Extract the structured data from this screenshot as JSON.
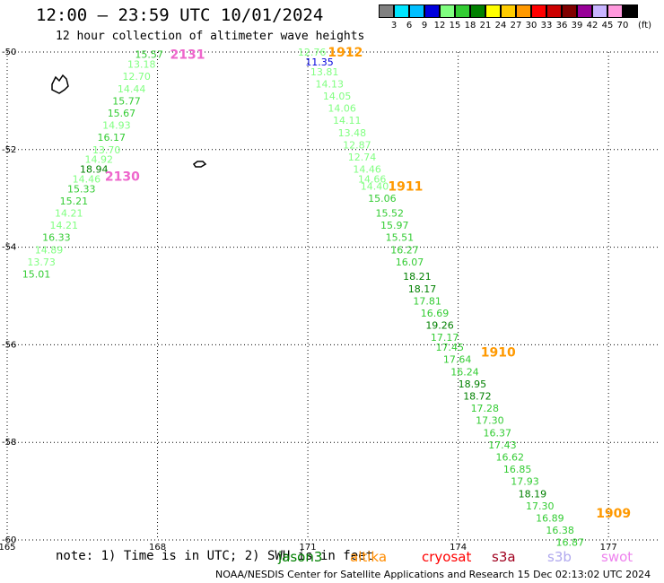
{
  "title": "12:00 – 23:59 UTC 10/01/2024",
  "subtitle": "12 hour collection of altimeter wave heights",
  "note": "note: 1) Time is in UTC; 2) SWH is in feet",
  "credit": "NOAA/NESDIS Center for Satellite Applications and Research   15 Dec 02:13:02 UTC 2024",
  "satellites": [
    {
      "name": "jason3",
      "color": "#008000"
    },
    {
      "name": "altika",
      "color": "#ff8c00"
    },
    {
      "name": "cryosat",
      "color": "#ff0000"
    },
    {
      "name": "s3a",
      "color": "#a0001e"
    },
    {
      "name": "s3b",
      "color": "#b0a8ee"
    },
    {
      "name": "swot",
      "color": "#ee82ee"
    }
  ],
  "legend": {
    "unit": "(ft)",
    "ticks": [
      "3",
      "6",
      "9",
      "12",
      "15",
      "18",
      "21",
      "24",
      "27",
      "30",
      "33",
      "36",
      "39",
      "42",
      "45",
      "70"
    ],
    "colors": [
      "#808080",
      "#00e5ff",
      "#00bfff",
      "#0000dd",
      "#80ff80",
      "#33cc33",
      "#008000",
      "#ffff00",
      "#ffcc00",
      "#ff9900",
      "#ff0000",
      "#cc0000",
      "#800000",
      "#990099",
      "#c8b4ff",
      "#ff99dd",
      "#000000"
    ]
  },
  "map": {
    "lon_range": [
      165,
      178
    ],
    "lat_range": [
      -60,
      -50
    ],
    "lon_ticks": [
      165,
      168,
      171,
      174,
      177
    ],
    "lat_ticks": [
      -50,
      -52,
      -54,
      -56,
      -58,
      -60
    ],
    "grid": "dotted"
  },
  "time_labels": [
    {
      "text": "1912",
      "lon": 171.4,
      "lat": -50.0,
      "color": "#ff9900"
    },
    {
      "text": "2131",
      "lon": 168.25,
      "lat": -50.05,
      "color": "#ee66cc"
    },
    {
      "text": "2130",
      "lon": 166.95,
      "lat": -52.55,
      "color": "#ee66cc"
    },
    {
      "text": "1911",
      "lon": 172.6,
      "lat": -52.75,
      "color": "#ff9900"
    },
    {
      "text": "1910",
      "lon": 174.45,
      "lat": -56.15,
      "color": "#ff9900"
    },
    {
      "text": "1909",
      "lon": 176.75,
      "lat": -59.45,
      "color": "#ff9900"
    }
  ],
  "tracks": [
    {
      "points": [
        {
          "lon": 167.55,
          "lat": -50.05,
          "swh": "15.57"
        },
        {
          "lon": 167.4,
          "lat": -50.25,
          "swh": "13.18"
        },
        {
          "lon": 167.3,
          "lat": -50.5,
          "swh": "12.70"
        },
        {
          "lon": 167.2,
          "lat": -50.75,
          "swh": "14.44"
        },
        {
          "lon": 167.1,
          "lat": -51.0,
          "swh": "15.77"
        },
        {
          "lon": 167.0,
          "lat": -51.25,
          "swh": "15.67"
        },
        {
          "lon": 166.9,
          "lat": -51.5,
          "swh": "14.93"
        },
        {
          "lon": 166.8,
          "lat": -51.75,
          "swh": "16.17"
        },
        {
          "lon": 166.7,
          "lat": -52.0,
          "swh": "13.70"
        },
        {
          "lon": 166.55,
          "lat": -52.2,
          "swh": "14.92"
        },
        {
          "lon": 166.45,
          "lat": -52.4,
          "swh": "18.94"
        },
        {
          "lon": 166.3,
          "lat": -52.6,
          "swh": "14.46"
        },
        {
          "lon": 166.2,
          "lat": -52.8,
          "swh": "15.33"
        },
        {
          "lon": 166.05,
          "lat": -53.05,
          "swh": "15.21"
        },
        {
          "lon": 165.95,
          "lat": -53.3,
          "swh": "14.21"
        },
        {
          "lon": 165.85,
          "lat": -53.55,
          "swh": "14.21"
        },
        {
          "lon": 165.7,
          "lat": -53.8,
          "swh": "16.33"
        },
        {
          "lon": 165.55,
          "lat": -54.05,
          "swh": "14.89"
        },
        {
          "lon": 165.4,
          "lat": -54.3,
          "swh": "13.73"
        },
        {
          "lon": 165.3,
          "lat": -54.55,
          "swh": "15.01"
        }
      ]
    },
    {
      "points": [
        {
          "lon": 170.8,
          "lat": -50.0,
          "swh": "12.76"
        },
        {
          "lon": 170.95,
          "lat": -50.2,
          "swh": "11.35"
        },
        {
          "lon": 171.05,
          "lat": -50.4,
          "swh": "13.81"
        },
        {
          "lon": 171.15,
          "lat": -50.65,
          "swh": "14.13"
        },
        {
          "lon": 171.3,
          "lat": -50.9,
          "swh": "14.05"
        },
        {
          "lon": 171.4,
          "lat": -51.15,
          "swh": "14.06"
        },
        {
          "lon": 171.5,
          "lat": -51.4,
          "swh": "14.11"
        },
        {
          "lon": 171.6,
          "lat": -51.65,
          "swh": "13.48"
        },
        {
          "lon": 171.7,
          "lat": -51.9,
          "swh": "12.87"
        },
        {
          "lon": 171.8,
          "lat": -52.15,
          "swh": "12.74"
        },
        {
          "lon": 171.9,
          "lat": -52.4,
          "swh": "14.46"
        },
        {
          "lon": 172.0,
          "lat": -52.6,
          "swh": "14.66"
        },
        {
          "lon": 172.05,
          "lat": -52.75,
          "swh": "14.40"
        },
        {
          "lon": 172.2,
          "lat": -53.0,
          "swh": "15.06"
        },
        {
          "lon": 172.35,
          "lat": -53.3,
          "swh": "15.52"
        },
        {
          "lon": 172.45,
          "lat": -53.55,
          "swh": "15.97"
        },
        {
          "lon": 172.55,
          "lat": -53.8,
          "swh": "15.51"
        },
        {
          "lon": 172.65,
          "lat": -54.05,
          "swh": "16.27"
        },
        {
          "lon": 172.75,
          "lat": -54.3,
          "swh": "16.07"
        },
        {
          "lon": 172.9,
          "lat": -54.6,
          "swh": "18.21"
        },
        {
          "lon": 173.0,
          "lat": -54.85,
          "swh": "18.17"
        },
        {
          "lon": 173.1,
          "lat": -55.1,
          "swh": "17.81"
        },
        {
          "lon": 173.25,
          "lat": -55.35,
          "swh": "16.69"
        },
        {
          "lon": 173.35,
          "lat": -55.6,
          "swh": "19.26"
        },
        {
          "lon": 173.45,
          "lat": -55.85,
          "swh": "17.17"
        },
        {
          "lon": 173.55,
          "lat": -56.05,
          "swh": "17.45"
        },
        {
          "lon": 173.7,
          "lat": -56.3,
          "swh": "17.64"
        },
        {
          "lon": 173.85,
          "lat": -56.55,
          "swh": "16.24"
        },
        {
          "lon": 174.0,
          "lat": -56.8,
          "swh": "18.95"
        },
        {
          "lon": 174.1,
          "lat": -57.05,
          "swh": "18.72"
        },
        {
          "lon": 174.25,
          "lat": -57.3,
          "swh": "17.28"
        },
        {
          "lon": 174.35,
          "lat": -57.55,
          "swh": "17.30"
        },
        {
          "lon": 174.5,
          "lat": -57.8,
          "swh": "16.37"
        },
        {
          "lon": 174.6,
          "lat": -58.05,
          "swh": "17.43"
        },
        {
          "lon": 174.75,
          "lat": -58.3,
          "swh": "16.62"
        },
        {
          "lon": 174.9,
          "lat": -58.55,
          "swh": "16.85"
        },
        {
          "lon": 175.05,
          "lat": -58.8,
          "swh": "17.93"
        },
        {
          "lon": 175.2,
          "lat": -59.05,
          "swh": "18.19"
        },
        {
          "lon": 175.35,
          "lat": -59.3,
          "swh": "17.30"
        },
        {
          "lon": 175.55,
          "lat": -59.55,
          "swh": "16.89"
        },
        {
          "lon": 175.75,
          "lat": -59.8,
          "swh": "16.38"
        },
        {
          "lon": 175.95,
          "lat": -60.05,
          "swh": "16.87"
        }
      ]
    }
  ]
}
